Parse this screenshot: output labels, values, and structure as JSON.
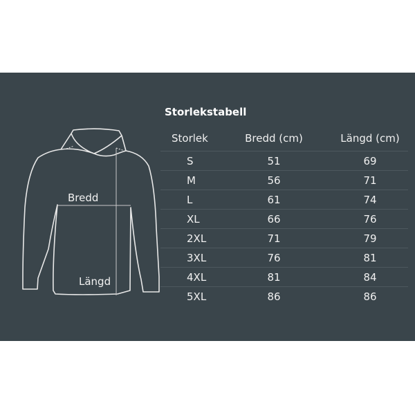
{
  "title": "Storlekstabell",
  "diagram": {
    "width_label": "Bredd",
    "length_label": "Längd"
  },
  "table": {
    "headers": [
      "Storlek",
      "Bredd (cm)",
      "Längd (cm)"
    ],
    "rows": [
      [
        "S",
        "51",
        "69"
      ],
      [
        "M",
        "56",
        "71"
      ],
      [
        "L",
        "61",
        "74"
      ],
      [
        "XL",
        "66",
        "76"
      ],
      [
        "2XL",
        "71",
        "79"
      ],
      [
        "3XL",
        "76",
        "81"
      ],
      [
        "4XL",
        "81",
        "84"
      ],
      [
        "5XL",
        "86",
        "86"
      ]
    ]
  }
}
